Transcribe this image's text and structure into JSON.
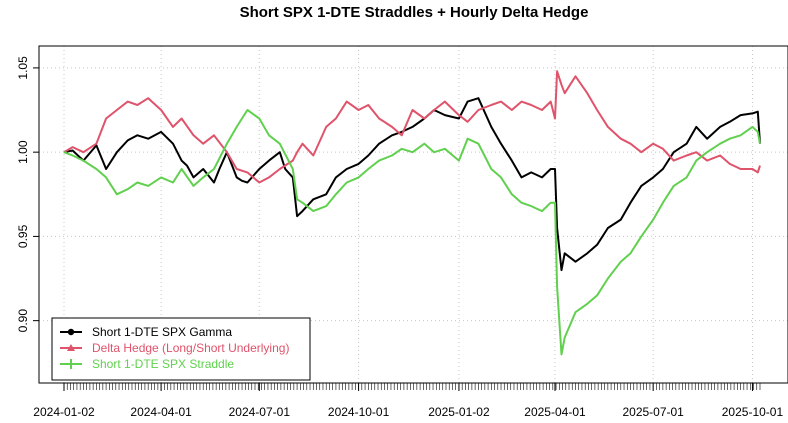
{
  "chart_data": {
    "type": "line",
    "title": "Short SPX 1-DTE Straddles + Hourly Delta Hedge",
    "xlabel": "",
    "ylabel": "",
    "x_start": "2024-01-02",
    "x_end": "2025-10-08",
    "x_ticks": [
      "2024-01-02",
      "2024-04-01",
      "2024-07-01",
      "2024-10-01",
      "2025-01-02",
      "2025-04-01",
      "2025-07-01",
      "2025-10-01"
    ],
    "ylim": [
      0.863,
      1.063
    ],
    "y_ticks": [
      0.9,
      0.95,
      1.0,
      1.05
    ],
    "y_tick_labels": [
      "0.90",
      "0.95",
      "1.00",
      "1.05"
    ],
    "grid": true,
    "legend_position": "bottom-left",
    "series": [
      {
        "name": "Short 1-DTE SPX Gamma",
        "color": "#000000",
        "marker": "circle",
        "points": [
          [
            "2024-01-02",
            1.0
          ],
          [
            "2024-01-10",
            1.001
          ],
          [
            "2024-01-20",
            0.995
          ],
          [
            "2024-02-01",
            1.004
          ],
          [
            "2024-02-10",
            0.99
          ],
          [
            "2024-02-20",
            1.0
          ],
          [
            "2024-03-01",
            1.007
          ],
          [
            "2024-03-10",
            1.01
          ],
          [
            "2024-03-20",
            1.008
          ],
          [
            "2024-04-01",
            1.012
          ],
          [
            "2024-04-12",
            1.005
          ],
          [
            "2024-04-20",
            0.995
          ],
          [
            "2024-04-25",
            0.992
          ],
          [
            "2024-05-01",
            0.985
          ],
          [
            "2024-05-10",
            0.99
          ],
          [
            "2024-05-20",
            0.982
          ],
          [
            "2024-05-25",
            0.99
          ],
          [
            "2024-06-01",
            1.0
          ],
          [
            "2024-06-10",
            0.985
          ],
          [
            "2024-06-15",
            0.983
          ],
          [
            "2024-06-20",
            0.982
          ],
          [
            "2024-07-01",
            0.99
          ],
          [
            "2024-07-10",
            0.995
          ],
          [
            "2024-07-20",
            1.0
          ],
          [
            "2024-07-25",
            0.99
          ],
          [
            "2024-08-01",
            0.985
          ],
          [
            "2024-08-05",
            0.962
          ],
          [
            "2024-08-10",
            0.965
          ],
          [
            "2024-08-20",
            0.972
          ],
          [
            "2024-09-01",
            0.975
          ],
          [
            "2024-09-10",
            0.985
          ],
          [
            "2024-09-20",
            0.99
          ],
          [
            "2024-10-01",
            0.993
          ],
          [
            "2024-10-10",
            0.998
          ],
          [
            "2024-10-20",
            1.005
          ],
          [
            "2024-11-01",
            1.01
          ],
          [
            "2024-11-10",
            1.012
          ],
          [
            "2024-11-20",
            1.015
          ],
          [
            "2024-12-01",
            1.02
          ],
          [
            "2024-12-10",
            1.025
          ],
          [
            "2024-12-20",
            1.022
          ],
          [
            "2025-01-02",
            1.02
          ],
          [
            "2025-01-10",
            1.03
          ],
          [
            "2025-01-20",
            1.032
          ],
          [
            "2025-02-01",
            1.015
          ],
          [
            "2025-02-10",
            1.005
          ],
          [
            "2025-02-20",
            0.995
          ],
          [
            "2025-03-01",
            0.985
          ],
          [
            "2025-03-10",
            0.988
          ],
          [
            "2025-03-20",
            0.985
          ],
          [
            "2025-03-28",
            0.99
          ],
          [
            "2025-04-01",
            0.99
          ],
          [
            "2025-04-03",
            0.955
          ],
          [
            "2025-04-07",
            0.93
          ],
          [
            "2025-04-10",
            0.94
          ],
          [
            "2025-04-20",
            0.935
          ],
          [
            "2025-05-01",
            0.94
          ],
          [
            "2025-05-10",
            0.945
          ],
          [
            "2025-05-20",
            0.955
          ],
          [
            "2025-06-01",
            0.96
          ],
          [
            "2025-06-10",
            0.97
          ],
          [
            "2025-06-20",
            0.98
          ],
          [
            "2025-07-01",
            0.985
          ],
          [
            "2025-07-10",
            0.99
          ],
          [
            "2025-07-20",
            1.0
          ],
          [
            "2025-08-01",
            1.005
          ],
          [
            "2025-08-10",
            1.015
          ],
          [
            "2025-08-20",
            1.008
          ],
          [
            "2025-09-01",
            1.015
          ],
          [
            "2025-09-10",
            1.018
          ],
          [
            "2025-09-20",
            1.022
          ],
          [
            "2025-10-01",
            1.023
          ],
          [
            "2025-10-06",
            1.024
          ],
          [
            "2025-10-08",
            1.005
          ]
        ]
      },
      {
        "name": "Delta Hedge (Long/Short Underlying)",
        "color": "#df536b",
        "marker": "triangle",
        "points": [
          [
            "2024-01-02",
            1.0
          ],
          [
            "2024-01-10",
            1.003
          ],
          [
            "2024-01-20",
            1.0
          ],
          [
            "2024-02-01",
            1.005
          ],
          [
            "2024-02-10",
            1.02
          ],
          [
            "2024-02-20",
            1.025
          ],
          [
            "2024-03-01",
            1.03
          ],
          [
            "2024-03-10",
            1.028
          ],
          [
            "2024-03-20",
            1.032
          ],
          [
            "2024-04-01",
            1.025
          ],
          [
            "2024-04-12",
            1.015
          ],
          [
            "2024-04-20",
            1.02
          ],
          [
            "2024-05-01",
            1.01
          ],
          [
            "2024-05-10",
            1.005
          ],
          [
            "2024-05-20",
            1.01
          ],
          [
            "2024-06-01",
            1.0
          ],
          [
            "2024-06-10",
            0.99
          ],
          [
            "2024-06-20",
            0.988
          ],
          [
            "2024-07-01",
            0.982
          ],
          [
            "2024-07-10",
            0.985
          ],
          [
            "2024-07-20",
            0.99
          ],
          [
            "2024-08-01",
            0.995
          ],
          [
            "2024-08-05",
            1.0
          ],
          [
            "2024-08-10",
            1.005
          ],
          [
            "2024-08-20",
            0.998
          ],
          [
            "2024-09-01",
            1.015
          ],
          [
            "2024-09-10",
            1.02
          ],
          [
            "2024-09-20",
            1.03
          ],
          [
            "2024-10-01",
            1.025
          ],
          [
            "2024-10-10",
            1.028
          ],
          [
            "2024-10-20",
            1.02
          ],
          [
            "2024-11-01",
            1.015
          ],
          [
            "2024-11-10",
            1.01
          ],
          [
            "2024-11-20",
            1.025
          ],
          [
            "2024-12-01",
            1.02
          ],
          [
            "2024-12-10",
            1.025
          ],
          [
            "2024-12-20",
            1.03
          ],
          [
            "2025-01-02",
            1.022
          ],
          [
            "2025-01-10",
            1.018
          ],
          [
            "2025-01-20",
            1.025
          ],
          [
            "2025-02-01",
            1.028
          ],
          [
            "2025-02-10",
            1.03
          ],
          [
            "2025-02-20",
            1.025
          ],
          [
            "2025-03-01",
            1.03
          ],
          [
            "2025-03-10",
            1.028
          ],
          [
            "2025-03-20",
            1.025
          ],
          [
            "2025-03-28",
            1.03
          ],
          [
            "2025-04-01",
            1.02
          ],
          [
            "2025-04-03",
            1.048
          ],
          [
            "2025-04-07",
            1.04
          ],
          [
            "2025-04-10",
            1.035
          ],
          [
            "2025-04-20",
            1.045
          ],
          [
            "2025-05-01",
            1.035
          ],
          [
            "2025-05-10",
            1.025
          ],
          [
            "2025-05-20",
            1.015
          ],
          [
            "2025-06-01",
            1.008
          ],
          [
            "2025-06-10",
            1.005
          ],
          [
            "2025-06-20",
            1.0
          ],
          [
            "2025-07-01",
            1.005
          ],
          [
            "2025-07-10",
            1.002
          ],
          [
            "2025-07-20",
            0.995
          ],
          [
            "2025-08-01",
            0.998
          ],
          [
            "2025-08-10",
            1.0
          ],
          [
            "2025-08-20",
            0.995
          ],
          [
            "2025-09-01",
            0.998
          ],
          [
            "2025-09-10",
            0.993
          ],
          [
            "2025-09-20",
            0.99
          ],
          [
            "2025-10-01",
            0.99
          ],
          [
            "2025-10-06",
            0.988
          ],
          [
            "2025-10-08",
            0.992
          ]
        ]
      },
      {
        "name": "Short 1-DTE SPX Straddle",
        "color": "#61d04f",
        "marker": "plus",
        "points": [
          [
            "2024-01-02",
            1.0
          ],
          [
            "2024-01-10",
            0.998
          ],
          [
            "2024-01-20",
            0.995
          ],
          [
            "2024-02-01",
            0.99
          ],
          [
            "2024-02-10",
            0.985
          ],
          [
            "2024-02-20",
            0.975
          ],
          [
            "2024-03-01",
            0.978
          ],
          [
            "2024-03-10",
            0.982
          ],
          [
            "2024-03-20",
            0.98
          ],
          [
            "2024-04-01",
            0.985
          ],
          [
            "2024-04-12",
            0.982
          ],
          [
            "2024-04-20",
            0.99
          ],
          [
            "2024-05-01",
            0.98
          ],
          [
            "2024-05-10",
            0.985
          ],
          [
            "2024-05-20",
            0.99
          ],
          [
            "2024-06-01",
            1.005
          ],
          [
            "2024-06-10",
            1.015
          ],
          [
            "2024-06-20",
            1.025
          ],
          [
            "2024-07-01",
            1.02
          ],
          [
            "2024-07-10",
            1.01
          ],
          [
            "2024-07-20",
            1.005
          ],
          [
            "2024-08-01",
            0.99
          ],
          [
            "2024-08-05",
            0.972
          ],
          [
            "2024-08-10",
            0.97
          ],
          [
            "2024-08-20",
            0.965
          ],
          [
            "2024-09-01",
            0.968
          ],
          [
            "2024-09-10",
            0.975
          ],
          [
            "2024-09-20",
            0.982
          ],
          [
            "2024-10-01",
            0.985
          ],
          [
            "2024-10-10",
            0.99
          ],
          [
            "2024-10-20",
            0.995
          ],
          [
            "2024-11-01",
            0.998
          ],
          [
            "2024-11-10",
            1.002
          ],
          [
            "2024-11-20",
            1.0
          ],
          [
            "2024-12-01",
            1.005
          ],
          [
            "2024-12-10",
            1.0
          ],
          [
            "2024-12-20",
            1.002
          ],
          [
            "2025-01-02",
            0.995
          ],
          [
            "2025-01-10",
            1.008
          ],
          [
            "2025-01-20",
            1.005
          ],
          [
            "2025-02-01",
            0.99
          ],
          [
            "2025-02-10",
            0.985
          ],
          [
            "2025-02-20",
            0.975
          ],
          [
            "2025-03-01",
            0.97
          ],
          [
            "2025-03-10",
            0.968
          ],
          [
            "2025-03-20",
            0.965
          ],
          [
            "2025-03-28",
            0.97
          ],
          [
            "2025-04-01",
            0.97
          ],
          [
            "2025-04-03",
            0.92
          ],
          [
            "2025-04-07",
            0.88
          ],
          [
            "2025-04-10",
            0.89
          ],
          [
            "2025-04-20",
            0.905
          ],
          [
            "2025-05-01",
            0.91
          ],
          [
            "2025-05-10",
            0.915
          ],
          [
            "2025-05-20",
            0.925
          ],
          [
            "2025-06-01",
            0.935
          ],
          [
            "2025-06-10",
            0.94
          ],
          [
            "2025-06-20",
            0.95
          ],
          [
            "2025-07-01",
            0.96
          ],
          [
            "2025-07-10",
            0.97
          ],
          [
            "2025-07-20",
            0.98
          ],
          [
            "2025-08-01",
            0.985
          ],
          [
            "2025-08-10",
            0.995
          ],
          [
            "2025-08-20",
            1.0
          ],
          [
            "2025-09-01",
            1.005
          ],
          [
            "2025-09-10",
            1.008
          ],
          [
            "2025-09-20",
            1.01
          ],
          [
            "2025-10-01",
            1.015
          ],
          [
            "2025-10-06",
            1.012
          ],
          [
            "2025-10-08",
            1.005
          ]
        ]
      }
    ]
  }
}
